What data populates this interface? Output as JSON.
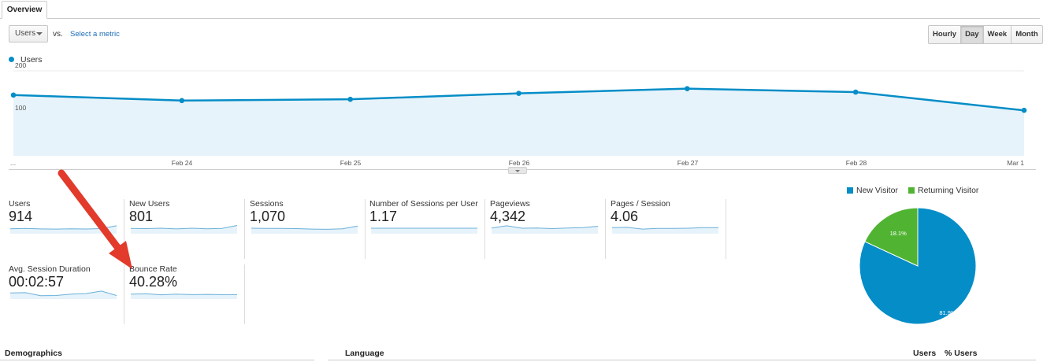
{
  "tabs": [
    {
      "label": "Overview"
    }
  ],
  "controls": {
    "metric_select": "Users",
    "vs_label": "vs.",
    "select_metric_link": "Select a metric",
    "granularity": [
      "Hourly",
      "Day",
      "Week",
      "Month"
    ],
    "granularity_selected": "Day"
  },
  "chart_data": {
    "type": "area",
    "legend": "top-left",
    "series": [
      {
        "name": "Users",
        "values": [
          143,
          130,
          133,
          147,
          158,
          150,
          107
        ]
      }
    ],
    "x": [
      "",
      "Feb 24",
      "Feb 25",
      "Feb 26",
      "Feb 27",
      "Feb 28",
      "Mar 1"
    ],
    "y_ticks": [
      "100",
      "200"
    ],
    "first_tick_label": "...",
    "ylim": [
      0,
      200
    ],
    "grid": true,
    "color": "#058dc7",
    "fill": "#e7f3fa"
  },
  "metrics": [
    {
      "label": "Users",
      "value": "914",
      "spark": [
        0.45,
        0.48,
        0.44,
        0.42,
        0.45,
        0.43,
        0.47,
        0.72
      ]
    },
    {
      "label": "New Users",
      "value": "801",
      "spark": [
        0.48,
        0.46,
        0.5,
        0.44,
        0.5,
        0.45,
        0.48,
        0.75
      ]
    },
    {
      "label": "Sessions",
      "value": "1,070",
      "spark": [
        0.5,
        0.48,
        0.48,
        0.46,
        0.42,
        0.4,
        0.45,
        0.7
      ]
    },
    {
      "label": "Number of Sessions per User",
      "value": "1.17",
      "spark": [
        0.5,
        0.5,
        0.5,
        0.5,
        0.5,
        0.5,
        0.5,
        0.5
      ]
    },
    {
      "label": "Pageviews",
      "value": "4,342",
      "spark": [
        0.52,
        0.72,
        0.5,
        0.52,
        0.46,
        0.52,
        0.55,
        0.68
      ]
    },
    {
      "label": "Pages / Session",
      "value": "4.06",
      "spark": [
        0.55,
        0.58,
        0.42,
        0.48,
        0.48,
        0.5,
        0.55,
        0.55
      ]
    },
    {
      "label": "Avg. Session Duration",
      "value": "00:02:57",
      "spark": [
        0.55,
        0.58,
        0.3,
        0.32,
        0.45,
        0.5,
        0.72,
        0.32
      ]
    },
    {
      "label": "Bounce Rate",
      "value": "40.28%",
      "spark": [
        0.45,
        0.48,
        0.38,
        0.45,
        0.4,
        0.42,
        0.4,
        0.4
      ]
    }
  ],
  "pie": {
    "legend": [
      {
        "name": "New Visitor",
        "color": "#058dc7"
      },
      {
        "name": "Returning Visitor",
        "color": "#50b432"
      }
    ],
    "values": [
      81.9,
      18.1
    ],
    "labels": [
      "81.9%",
      "18.1%"
    ]
  },
  "sections": {
    "demographics": "Demographics",
    "language": "Language",
    "col_users": "Users",
    "col_pct_users": "% Users"
  }
}
